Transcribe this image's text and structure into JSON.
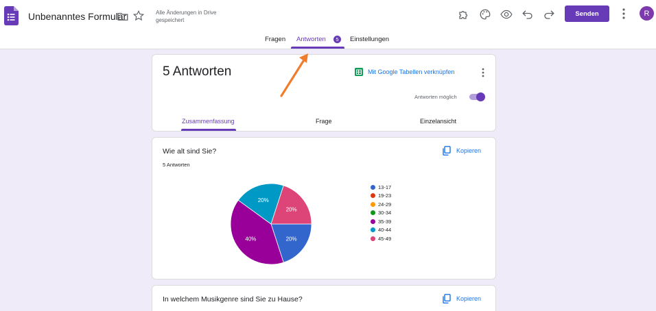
{
  "header": {
    "doc_title": "Unbenanntes Formular",
    "saved_note": "Alle Änderungen in Drive gespeichert",
    "send_label": "Senden",
    "avatar_initial": "R",
    "icons": [
      "addon-puzzle-icon",
      "palette-icon",
      "preview-eye-icon",
      "undo-icon",
      "redo-icon",
      "more-vert-icon"
    ]
  },
  "tabs": {
    "questions": "Fragen",
    "responses": "Antworten",
    "responses_badge": "5",
    "settings": "Einstellungen"
  },
  "summary_card": {
    "count_title": "5 Antworten",
    "sheets_link": "Mit Google Tabellen verknüpfen",
    "accept_label": "Antworten möglich",
    "accepting": true,
    "subtabs": [
      "Zusammenfassung",
      "Frage",
      "Einzelansicht"
    ]
  },
  "question1": {
    "title": "Wie alt sind Sie?",
    "count": "5 Antworten",
    "copy_label": "Kopieren"
  },
  "question2": {
    "title": "In welchem Musikgenre sind Sie zu Hause?",
    "copy_label": "Kopieren"
  },
  "chart_data": {
    "type": "pie",
    "categories": [
      "13-17",
      "19-23",
      "24-29",
      "30-34",
      "35-39",
      "40-44",
      "45-49"
    ],
    "colors": [
      "#3366cc",
      "#dc3912",
      "#ff9900",
      "#109618",
      "#990099",
      "#0099c6",
      "#dd4477"
    ],
    "slices": [
      {
        "label": "13-17",
        "value": 20,
        "color": "#3366cc"
      },
      {
        "label": "35-39",
        "value": 40,
        "color": "#990099"
      },
      {
        "label": "40-44",
        "value": 20,
        "color": "#0099c6"
      },
      {
        "label": "45-49",
        "value": 20,
        "color": "#dd4477"
      }
    ],
    "value_labels": [
      "20%",
      "40%",
      "20%",
      "20%"
    ]
  },
  "colors": {
    "accent": "#673ab7",
    "background": "#f0ebf8",
    "link": "#1a73e8",
    "annotation_arrow": "#f07c2c"
  }
}
